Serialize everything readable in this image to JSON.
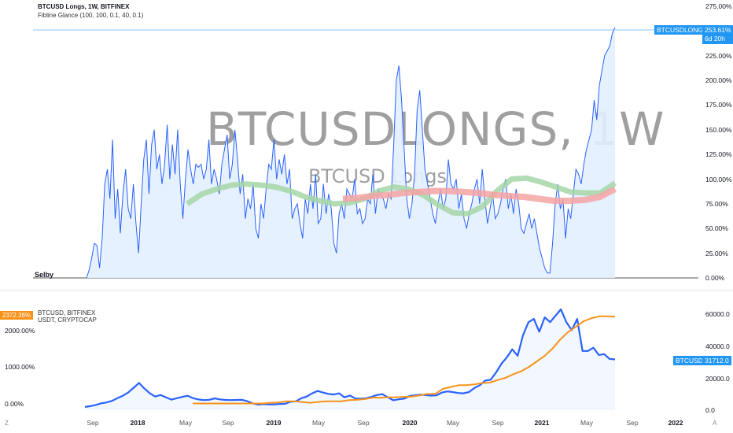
{
  "top_pane": {
    "symbol_line": "BTCUSD Longs, 1W, BITFINEX",
    "indicator_line": "Fibline Glance (100, 100, 0.1, 40, 0.1)",
    "watermark_big": "BTCUSDLONGS, 1W",
    "watermark_small": "BTCUSD Longs",
    "author_label": "Selby",
    "last_tag_symbol": "BTCUSDLONGS",
    "last_tag_value": "253.61%",
    "last_tag_countdown": "6d 20h"
  },
  "bottom_pane": {
    "legend_line1": "BTCUSD, BITFINEX",
    "legend_line2": "USDT, CRYPTOCAP",
    "usdt_tag": "2372.36%",
    "btc_tag_symbol": "BTCUSD",
    "btc_tag_value": "31712.0"
  },
  "x_axis": {
    "labels": [
      {
        "text": "Sep",
        "bold": false
      },
      {
        "text": "2018",
        "bold": true
      },
      {
        "text": "May",
        "bold": false
      },
      {
        "text": "Sep",
        "bold": false
      },
      {
        "text": "2019",
        "bold": true
      },
      {
        "text": "May",
        "bold": false
      },
      {
        "text": "Sep",
        "bold": false
      },
      {
        "text": "2020",
        "bold": true
      },
      {
        "text": "May",
        "bold": false
      },
      {
        "text": "Sep",
        "bold": false
      },
      {
        "text": "2021",
        "bold": true
      },
      {
        "text": "May",
        "bold": false
      },
      {
        "text": "Sep",
        "bold": false
      },
      {
        "text": "2022",
        "bold": true
      }
    ]
  },
  "corners": {
    "left": "Z",
    "right": "A"
  },
  "colors": {
    "longs_line": "#2962ff",
    "longs_fill": "#e3efff",
    "fib_green": "#a5d6a7",
    "fib_red": "#f5a3a3",
    "btc_line": "#2962ff",
    "usdt_line": "#f7931a",
    "tag_blue": "#2196f3",
    "tag_orange": "#f7931a"
  },
  "chart_data": [
    {
      "type": "area",
      "title": "BTCUSD Longs, 1W, BITFINEX",
      "y_unit": "%",
      "ylim": [
        0,
        275
      ],
      "y_ticks": [
        "275.00%",
        "250.00%",
        "225.00%",
        "200.00%",
        "175.00%",
        "150.00%",
        "125.00%",
        "100.00%",
        "75.00%",
        "50.00%",
        "25.00%",
        "0.00%"
      ],
      "x_start": "2017-08",
      "x_end": "2021-08",
      "series": [
        {
          "name": "BTCUSD Longs",
          "values": [
            0,
            8,
            20,
            35,
            33,
            10,
            40,
            95,
            110,
            80,
            140,
            60,
            90,
            45,
            85,
            110,
            70,
            60,
            95,
            55,
            25,
            75,
            120,
            140,
            85,
            135,
            150,
            110,
            125,
            95,
            115,
            155,
            100,
            135,
            105,
            150,
            95,
            60,
            100,
            130,
            110,
            95,
            115,
            112,
            115,
            100,
            110,
            140,
            95,
            110,
            100,
            85,
            115,
            130,
            145,
            100,
            115,
            150,
            120,
            85,
            105,
            60,
            80,
            70,
            95,
            50,
            40,
            75,
            60,
            90,
            115,
            110,
            140,
            100,
            120,
            105,
            125,
            95,
            110,
            60,
            70,
            75,
            55,
            40,
            80,
            65,
            95,
            70,
            105,
            55,
            60,
            95,
            65,
            85,
            70,
            35,
            25,
            65,
            75,
            60,
            90,
            85,
            80,
            100,
            65,
            70,
            55,
            60,
            80,
            75,
            105,
            65,
            90,
            85,
            80,
            70,
            85,
            80,
            135,
            200,
            215,
            180,
            130,
            80,
            60,
            75,
            105,
            170,
            190,
            150,
            110,
            95,
            80,
            65,
            55,
            75,
            90,
            70,
            80,
            120,
            95,
            90,
            100,
            70,
            85,
            60,
            50,
            65,
            75,
            90,
            100,
            75,
            110,
            80,
            55,
            70,
            85,
            60,
            65,
            75,
            90,
            100,
            70,
            85,
            65,
            90,
            75,
            50,
            45,
            55,
            65,
            50,
            60,
            45,
            30,
            20,
            10,
            5,
            5,
            35,
            75,
            95,
            70,
            80,
            40,
            70,
            60,
            85,
            110,
            105,
            95,
            115,
            130,
            140,
            150,
            180,
            160,
            195,
            210,
            225,
            230,
            235,
            248,
            253.61
          ]
        },
        {
          "name": "Fibline Glance (green)",
          "values": [
            75,
            85,
            90,
            94,
            95,
            94,
            92,
            88,
            82,
            78,
            75,
            76,
            80,
            88,
            92,
            90,
            84,
            74,
            66,
            65,
            72,
            88,
            100,
            101,
            97,
            92,
            87,
            86,
            86,
            96
          ]
        },
        {
          "name": "Fibline Glance (red)",
          "values": [
            80,
            81,
            83,
            84,
            86,
            87,
            88,
            88,
            87,
            86,
            84,
            83,
            82,
            80,
            78,
            78,
            79,
            82,
            90
          ]
        }
      ]
    },
    {
      "type": "line",
      "title": "BTCUSD, BITFINEX / USDT, CRYPTOCAP",
      "y_ticks_left": [
        "2000.00%",
        "1000.00%",
        "0.00%"
      ],
      "y_ticks_right": [
        "60000.0",
        "40000.0",
        "20000.0",
        "0.0"
      ],
      "series": [
        {
          "name": "BTCUSD, BITFINEX",
          "values": [
            2000,
            2500,
            3300,
            4300,
            4800,
            5800,
            7500,
            9000,
            11000,
            14000,
            17000,
            13500,
            10500,
            8500,
            9500,
            8000,
            6600,
            7500,
            8300,
            9000,
            7500,
            6700,
            6300,
            6500,
            7400,
            6700,
            6400,
            6300,
            6400,
            6500,
            5600,
            4300,
            3500,
            3800,
            3600,
            3600,
            3900,
            4000,
            5200,
            5500,
            7500,
            8500,
            10500,
            12000,
            11000,
            10200,
            9800,
            10500,
            8000,
            9200,
            7300,
            7200,
            7500,
            8300,
            9500,
            10000,
            8000,
            6200,
            6800,
            7200,
            8800,
            9300,
            9700,
            9400,
            9100,
            9300,
            11000,
            11700,
            11300,
            10700,
            10500,
            11300,
            13800,
            15600,
            18500,
            19000,
            23500,
            29000,
            33000,
            38000,
            34000,
            47000,
            55000,
            57000,
            49000,
            58000,
            55000,
            59000,
            63000,
            55000,
            50000,
            57000,
            37000,
            37000,
            39000,
            34500,
            35000,
            32000,
            31712
          ]
        },
        {
          "name": "USDT, CRYPTOCAP",
          "values": [
            0,
            0,
            0,
            0,
            0,
            0,
            0,
            0,
            0,
            0,
            20,
            30,
            60,
            60,
            40,
            20,
            40,
            60,
            60,
            60,
            90,
            100,
            120,
            160,
            160,
            170,
            170,
            180,
            190,
            220,
            260,
            260,
            400,
            450,
            500,
            500,
            520,
            560,
            570,
            640,
            700,
            800,
            880,
            1000,
            1150,
            1300,
            1500,
            1750,
            1950,
            2100,
            2250,
            2330,
            2380,
            2380,
            2372.36
          ]
        }
      ]
    }
  ]
}
